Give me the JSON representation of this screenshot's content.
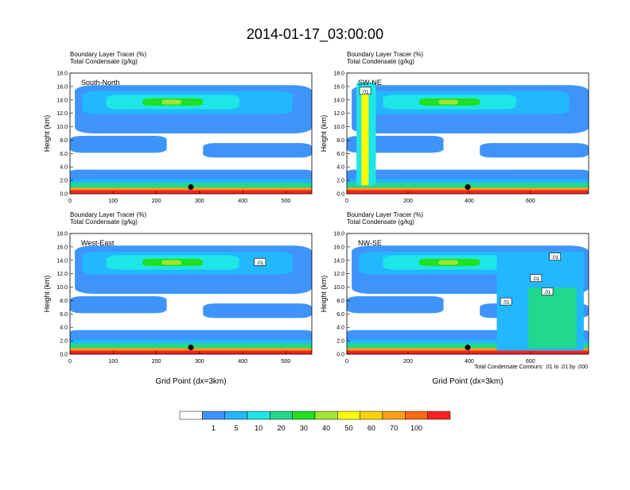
{
  "title": "2014-01-17_03:00:00",
  "colorbar": {
    "colors": [
      "#ffffff",
      "#3f94fc",
      "#22b7ff",
      "#1ee6e6",
      "#20d98c",
      "#20e020",
      "#a0e632",
      "#ffff00",
      "#ffd200",
      "#ffa014",
      "#ff6a14",
      "#ff2020"
    ],
    "labels": [
      "1",
      "5",
      "10",
      "20",
      "30",
      "40",
      "50",
      "60",
      "70",
      "100"
    ]
  },
  "contour_note": "Total Condensate Contours: .01 to .01 by .000",
  "chart_data": [
    {
      "type": "heatmap",
      "panel": "South-North",
      "subtitle_1": "Boundary Layer Tracer   (%)",
      "subtitle_2": "Total Condensate   (g/kg)",
      "ylabel": "Height (km)",
      "xlabel": "",
      "xlim": [
        0,
        560
      ],
      "ylim": [
        0,
        18
      ],
      "xticks": [
        "0",
        "100",
        "200",
        "300",
        "400",
        "500"
      ],
      "xtick_values": [
        0,
        100,
        200,
        300,
        400,
        500
      ],
      "yticks": [
        "0.0",
        "2.0",
        "4.0",
        "6.0",
        "8.0",
        "10.0",
        "12.0",
        "14.0",
        "16.0",
        "18.0"
      ],
      "marker": {
        "x": 280,
        "y": 1.0
      },
      "contour_labels": []
    },
    {
      "type": "heatmap",
      "panel": "SW-NE",
      "subtitle_1": "Boundary Layer Tracer   (%)",
      "subtitle_2": "Total Condensate   (g/kg)",
      "ylabel": "Height (km)",
      "xlabel": "",
      "xlim": [
        0,
        790
      ],
      "ylim": [
        0,
        18
      ],
      "xticks": [
        "0",
        "200",
        "400",
        "600"
      ],
      "xtick_values": [
        0,
        200,
        400,
        600
      ],
      "yticks": [
        "0.0",
        "2.0",
        "4.0",
        "6.0",
        "8.0",
        "10.0",
        "12.0",
        "14.0",
        "16.0",
        "18.0"
      ],
      "marker": {
        "x": 395,
        "y": 1.0
      },
      "contour_labels": [
        {
          "text": ".01",
          "x": 60,
          "y": 15.3
        }
      ]
    },
    {
      "type": "heatmap",
      "panel": "West-East",
      "subtitle_1": "Boundary Layer Tracer   (%)",
      "subtitle_2": "Total Condensate   (g/kg)",
      "ylabel": "Height (km)",
      "xlabel": "Grid Point (dx=3km)",
      "xlim": [
        0,
        560
      ],
      "ylim": [
        0,
        18
      ],
      "xticks": [
        "0",
        "100",
        "200",
        "300",
        "400",
        "500"
      ],
      "xtick_values": [
        0,
        100,
        200,
        300,
        400,
        500
      ],
      "yticks": [
        "0.0",
        "2.0",
        "4.0",
        "6.0",
        "8.0",
        "10.0",
        "12.0",
        "14.0",
        "16.0",
        "18.0"
      ],
      "marker": {
        "x": 280,
        "y": 1.0
      },
      "contour_labels": [
        {
          "text": ".01",
          "x": 440,
          "y": 13.7
        }
      ]
    },
    {
      "type": "heatmap",
      "panel": "NW-SE",
      "subtitle_1": "Boundary Layer Tracer   (%)",
      "subtitle_2": "Total Condensate   (g/kg)",
      "ylabel": "Height (km)",
      "xlabel": "Grid Point (dx=3km)",
      "xlim": [
        0,
        790
      ],
      "ylim": [
        0,
        18
      ],
      "xticks": [
        "0",
        "200",
        "400",
        "600"
      ],
      "xtick_values": [
        0,
        200,
        400,
        600
      ],
      "yticks": [
        "0.0",
        "2.0",
        "4.0",
        "6.0",
        "8.0",
        "10.0",
        "12.0",
        "14.0",
        "16.0",
        "18.0"
      ],
      "marker": {
        "x": 395,
        "y": 1.0
      },
      "contour_labels": [
        {
          "text": ".01",
          "x": 680,
          "y": 14.5
        },
        {
          "text": ".01",
          "x": 618,
          "y": 11.3
        },
        {
          "text": ".01",
          "x": 655,
          "y": 9.3
        },
        {
          "text": ".01",
          "x": 520,
          "y": 7.8
        }
      ]
    }
  ]
}
